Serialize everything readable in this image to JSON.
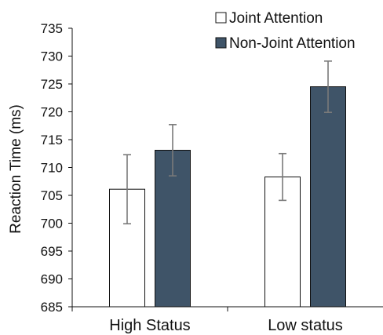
{
  "chart_data": {
    "type": "bar",
    "categories": [
      "High Status",
      "Low status"
    ],
    "series": [
      {
        "name": "Joint Attention",
        "values": [
          706.1,
          708.3
        ],
        "error": [
          6.2,
          4.2
        ],
        "color": "#ffffff"
      },
      {
        "name": "Non-Joint Attention",
        "values": [
          713.1,
          724.5
        ],
        "error": [
          4.6,
          4.6
        ],
        "color": "#3f5468"
      }
    ],
    "ylabel": "Reaction Time (ms)",
    "xlabel": "",
    "ylim": [
      685,
      735
    ],
    "yticks": [
      685,
      690,
      695,
      700,
      705,
      710,
      715,
      720,
      725,
      730,
      735
    ],
    "grid": false,
    "legend_position": "top-right"
  }
}
